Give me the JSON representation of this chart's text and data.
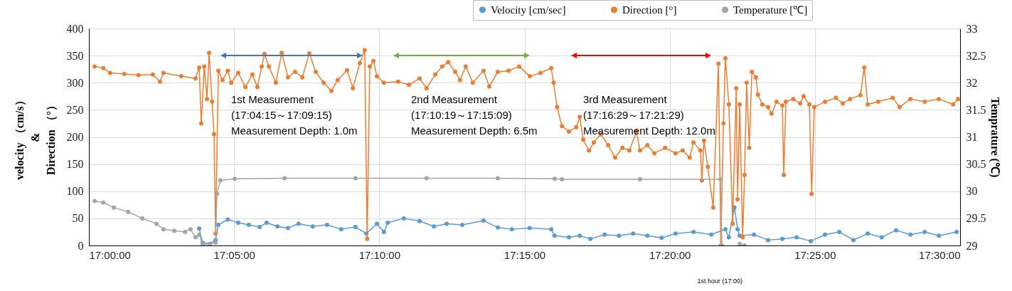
{
  "chart_data": {
    "type": "line",
    "xlabel": "1st hour (17:00)",
    "ylabel": "velocity （cm/s）\n&\nDirection （°）",
    "y2label": "Temprature (℃)",
    "xlim": [
      17,
      17.5
    ],
    "xticks": [
      {
        "value": 17,
        "label": "17:00:00"
      },
      {
        "value": 17.08333,
        "label": "17:05:00"
      },
      {
        "value": 17.16667,
        "label": "17:10:00"
      },
      {
        "value": 17.25,
        "label": "17:15:00"
      },
      {
        "value": 17.33333,
        "label": "17:20:00"
      },
      {
        "value": 17.41667,
        "label": "17:25:00"
      },
      {
        "value": 17.5,
        "label": "17:30:00"
      }
    ],
    "ylim": [
      0,
      400
    ],
    "yticks": [
      0,
      50,
      100,
      150,
      200,
      250,
      300,
      350,
      400
    ],
    "y2lim": [
      29,
      33
    ],
    "y2ticks": [
      29,
      29.5,
      30,
      30.5,
      31,
      31.5,
      32,
      32.5,
      33
    ],
    "grid": true,
    "legend": "top right",
    "marker": "circle",
    "line_style": "solid",
    "series": [
      {
        "name": "Velocity [cm/sec]",
        "color": "#5b9bd5",
        "x": [
          17.0633,
          17.0653,
          17.0693,
          17.0727,
          17.0743,
          17.0797,
          17.0857,
          17.0918,
          17.098,
          17.102,
          17.1082,
          17.1143,
          17.1203,
          17.1285,
          17.1367,
          17.1448,
          17.153,
          17.1592,
          17.1653,
          17.1693,
          17.1715,
          17.1808,
          17.1898,
          17.198,
          17.2053,
          17.2143,
          17.2265,
          17.2347,
          17.2428,
          17.253,
          17.2653,
          17.2673,
          17.2755,
          17.2817,
          17.2878,
          17.296,
          17.3042,
          17.3123,
          17.3205,
          17.3287,
          17.3367,
          17.347,
          17.3572,
          17.3653,
          17.3673,
          17.3705,
          17.3723,
          17.3735,
          17.3817,
          17.3898,
          17.398,
          17.4062,
          17.4143,
          17.4225,
          17.4307,
          17.4388,
          17.447,
          17.455,
          17.4633,
          17.4715,
          17.4797,
          17.4878,
          17.498
        ],
        "values": [
          31,
          5,
          3,
          10,
          38,
          48,
          42,
          38,
          34,
          42,
          35,
          32,
          40,
          35,
          38,
          30,
          34,
          22,
          40,
          25,
          42,
          50,
          45,
          35,
          40,
          38,
          46,
          33,
          30,
          32,
          30,
          18,
          15,
          18,
          12,
          20,
          18,
          22,
          18,
          14,
          22,
          25,
          20,
          30,
          15,
          70,
          30,
          18,
          20,
          10,
          12,
          15,
          8,
          20,
          25,
          10,
          22,
          15,
          28,
          20,
          25,
          18,
          25
        ]
      },
      {
        "name": "Direction [°]",
        "color": "#ed7d31",
        "x": [
          17.0033,
          17.0083,
          17.0122,
          17.0203,
          17.0285,
          17.0367,
          17.0408,
          17.0428,
          17.053,
          17.0612,
          17.0633,
          17.0645,
          17.0662,
          17.0678,
          17.069,
          17.0707,
          17.0718,
          17.0727,
          17.0743,
          17.0767,
          17.0797,
          17.0817,
          17.0857,
          17.0898,
          17.0938,
          17.0967,
          17.0992,
          17.1008,
          17.1033,
          17.1073,
          17.1107,
          17.1143,
          17.1183,
          17.1225,
          17.1265,
          17.1302,
          17.1347,
          17.1392,
          17.1428,
          17.1482,
          17.1515,
          17.1555,
          17.1583,
          17.1597,
          17.1612,
          17.1633,
          17.1653,
          17.1693,
          17.1775,
          17.1837,
          17.1898,
          17.1938,
          17.1988,
          17.2028,
          17.2062,
          17.2102,
          17.213,
          17.2163,
          17.2203,
          17.2265,
          17.2298,
          17.2347,
          17.2408,
          17.247,
          17.253,
          17.2592,
          17.2653,
          17.2667,
          17.2687,
          17.2715,
          17.2755,
          17.2797,
          17.2817,
          17.2837,
          17.287,
          17.2898,
          17.2938,
          17.298,
          17.302,
          17.3062,
          17.3102,
          17.3143,
          17.3163,
          17.3205,
          17.3245,
          17.3307,
          17.3367,
          17.3408,
          17.3448,
          17.347,
          17.351,
          17.3518,
          17.353,
          17.3552,
          17.3583,
          17.3613,
          17.3627,
          17.3642,
          17.3653,
          17.3673,
          17.3695,
          17.3715,
          17.3723,
          17.3735,
          17.3752,
          17.3763,
          17.3775,
          17.379,
          17.3805,
          17.3828,
          17.384,
          17.3865,
          17.3898,
          17.3918,
          17.3947,
          17.398,
          17.3988,
          17.4,
          17.4042,
          17.4082,
          17.4102,
          17.4135,
          17.4148,
          17.4163,
          17.4225,
          17.4287,
          17.4327,
          17.4368,
          17.4428,
          17.445,
          17.447,
          17.453,
          17.4613,
          17.4653,
          17.4715,
          17.4797,
          17.4878,
          17.496,
          17.4988
        ],
        "values": [
          330,
          327,
          318,
          316,
          314,
          315,
          302,
          318,
          312,
          308,
          328,
          225,
          330,
          270,
          355,
          265,
          205,
          22,
          322,
          305,
          322,
          300,
          318,
          292,
          315,
          292,
          330,
          353,
          330,
          300,
          355,
          310,
          320,
          310,
          354,
          320,
          300,
          285,
          305,
          323,
          290,
          336,
          360,
          12,
          330,
          340,
          312,
          300,
          302,
          296,
          308,
          290,
          315,
          330,
          338,
          320,
          305,
          330,
          300,
          322,
          293,
          320,
          322,
          330,
          312,
          318,
          327,
          300,
          255,
          220,
          210,
          218,
          237,
          195,
          175,
          190,
          205,
          185,
          162,
          180,
          175,
          210,
          175,
          185,
          170,
          180,
          170,
          175,
          162,
          190,
          175,
          120,
          193,
          145,
          70,
          335,
          0,
          225,
          345,
          260,
          40,
          290,
          85,
          260,
          15,
          130,
          300,
          180,
          320,
          310,
          278,
          260,
          255,
          243,
          265,
          258,
          130,
          265,
          270,
          262,
          275,
          260,
          95,
          255,
          265,
          272,
          262,
          270,
          277,
          328,
          260,
          265,
          272,
          255,
          270,
          265,
          270,
          260,
          270
        ]
      },
      {
        "name": "Temperature [℃]",
        "color": "#a5a5a5",
        "axis": "y2",
        "x": [
          17.0033,
          17.0082,
          17.0143,
          17.0225,
          17.0307,
          17.0388,
          17.0428,
          17.049,
          17.0552,
          17.0583,
          17.0612,
          17.0633,
          17.0653,
          17.0693,
          17.0727,
          17.0735,
          17.0755,
          17.0837,
          17.1123,
          17.153,
          17.1938,
          17.2347,
          17.2673,
          17.2715,
          17.3163,
          17.3625,
          17.3633,
          17.37,
          17.3735,
          17.3763
        ],
        "values": [
          29.82,
          29.79,
          29.7,
          29.62,
          29.5,
          29.4,
          29.3,
          29.27,
          29.25,
          29.3,
          29.15,
          29.2,
          29.02,
          29.02,
          29.05,
          29.95,
          30.2,
          30.23,
          30.24,
          30.24,
          30.24,
          30.24,
          30.23,
          30.22,
          30.22,
          30.22,
          29.0,
          null,
          29.03,
          29.0
        ]
      }
    ],
    "annotations": [
      "1st Measurement\n(17:04:15～17:09:15)\nMeasurement Depth: 1.0m",
      "2nd Measurement\n(17:10:19～17:15:09)\nMeasurement Depth: 6.5m",
      "3rd Measurement\n(17:16:29～17:21:29)\nMeasurement Depth: 12.0m"
    ]
  }
}
